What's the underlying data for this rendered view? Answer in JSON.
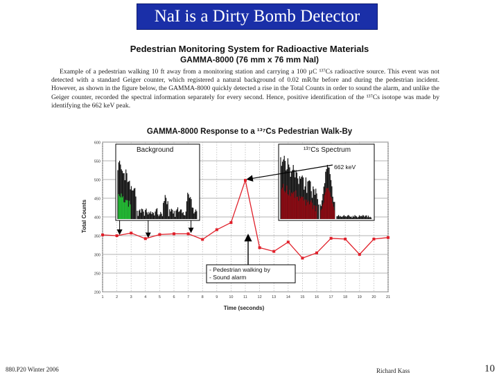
{
  "slide": {
    "title": "NaI is a Dirty Bomb Detector",
    "header_line1": "Pedestrian Monitoring System for Radioactive Materials",
    "header_line2": "GAMMA-8000 (76 mm x 76 mm NaI)",
    "paragraph": "Example of a pedestrian walking 10 ft away from a monitoring station and carrying a 100 µC ¹³⁷Cs radioactive source. This event was not detected with a standard Geiger counter, which registered a natural background of 0.02 mR/hr before and during the pedestrian incident. However, as shown in the figure below, the GAMMA-8000 quickly detected a rise in the Total Counts in order to sound the alarm, and unlike the Geiger counter, recorded the spectral information separately for every second. Hence, positive identification of the ¹³⁷Cs isotope was made by identifying the 662 keV peak.",
    "footer_left": "880.P20 Winter 2006",
    "footer_center": "Richard Kass",
    "page_number": "10"
  },
  "chart_data": {
    "type": "line",
    "title": "GAMMA-8000 Response to a ¹³⁷Cs Pedestrian Walk-By",
    "xlabel": "Time (seconds)",
    "ylabel": "Total Counts",
    "x": [
      1,
      2,
      3,
      4,
      5,
      6,
      7,
      8,
      9,
      10,
      11,
      12,
      13,
      14,
      15,
      16,
      17,
      18,
      19,
      20,
      21
    ],
    "y": [
      352,
      350,
      357,
      342,
      353,
      355,
      355,
      340,
      366,
      385,
      498,
      318,
      308,
      333,
      290,
      304,
      343,
      341,
      300,
      341,
      345
    ],
    "xlim": [
      1,
      21
    ],
    "ylim": [
      200,
      600
    ],
    "xticks": [
      "1",
      "2",
      "3",
      "4",
      "5",
      "6",
      "7",
      "8",
      "9",
      "10",
      "11",
      "12",
      "13",
      "14",
      "15",
      "16",
      "17",
      "18",
      "19",
      "20",
      "21"
    ],
    "yticks": [
      "200",
      "250",
      "300",
      "350",
      "400",
      "450",
      "500",
      "550",
      "600"
    ],
    "grid": true,
    "line_color": "#e0202a",
    "inset_background_label": "Background",
    "inset_spectrum_label": "¹³⁷Cs Spectrum",
    "inset_peak_label": "662 keV",
    "annotation_line1": "- Pedestrian walking by",
    "annotation_line2": "- Sound alarm"
  }
}
